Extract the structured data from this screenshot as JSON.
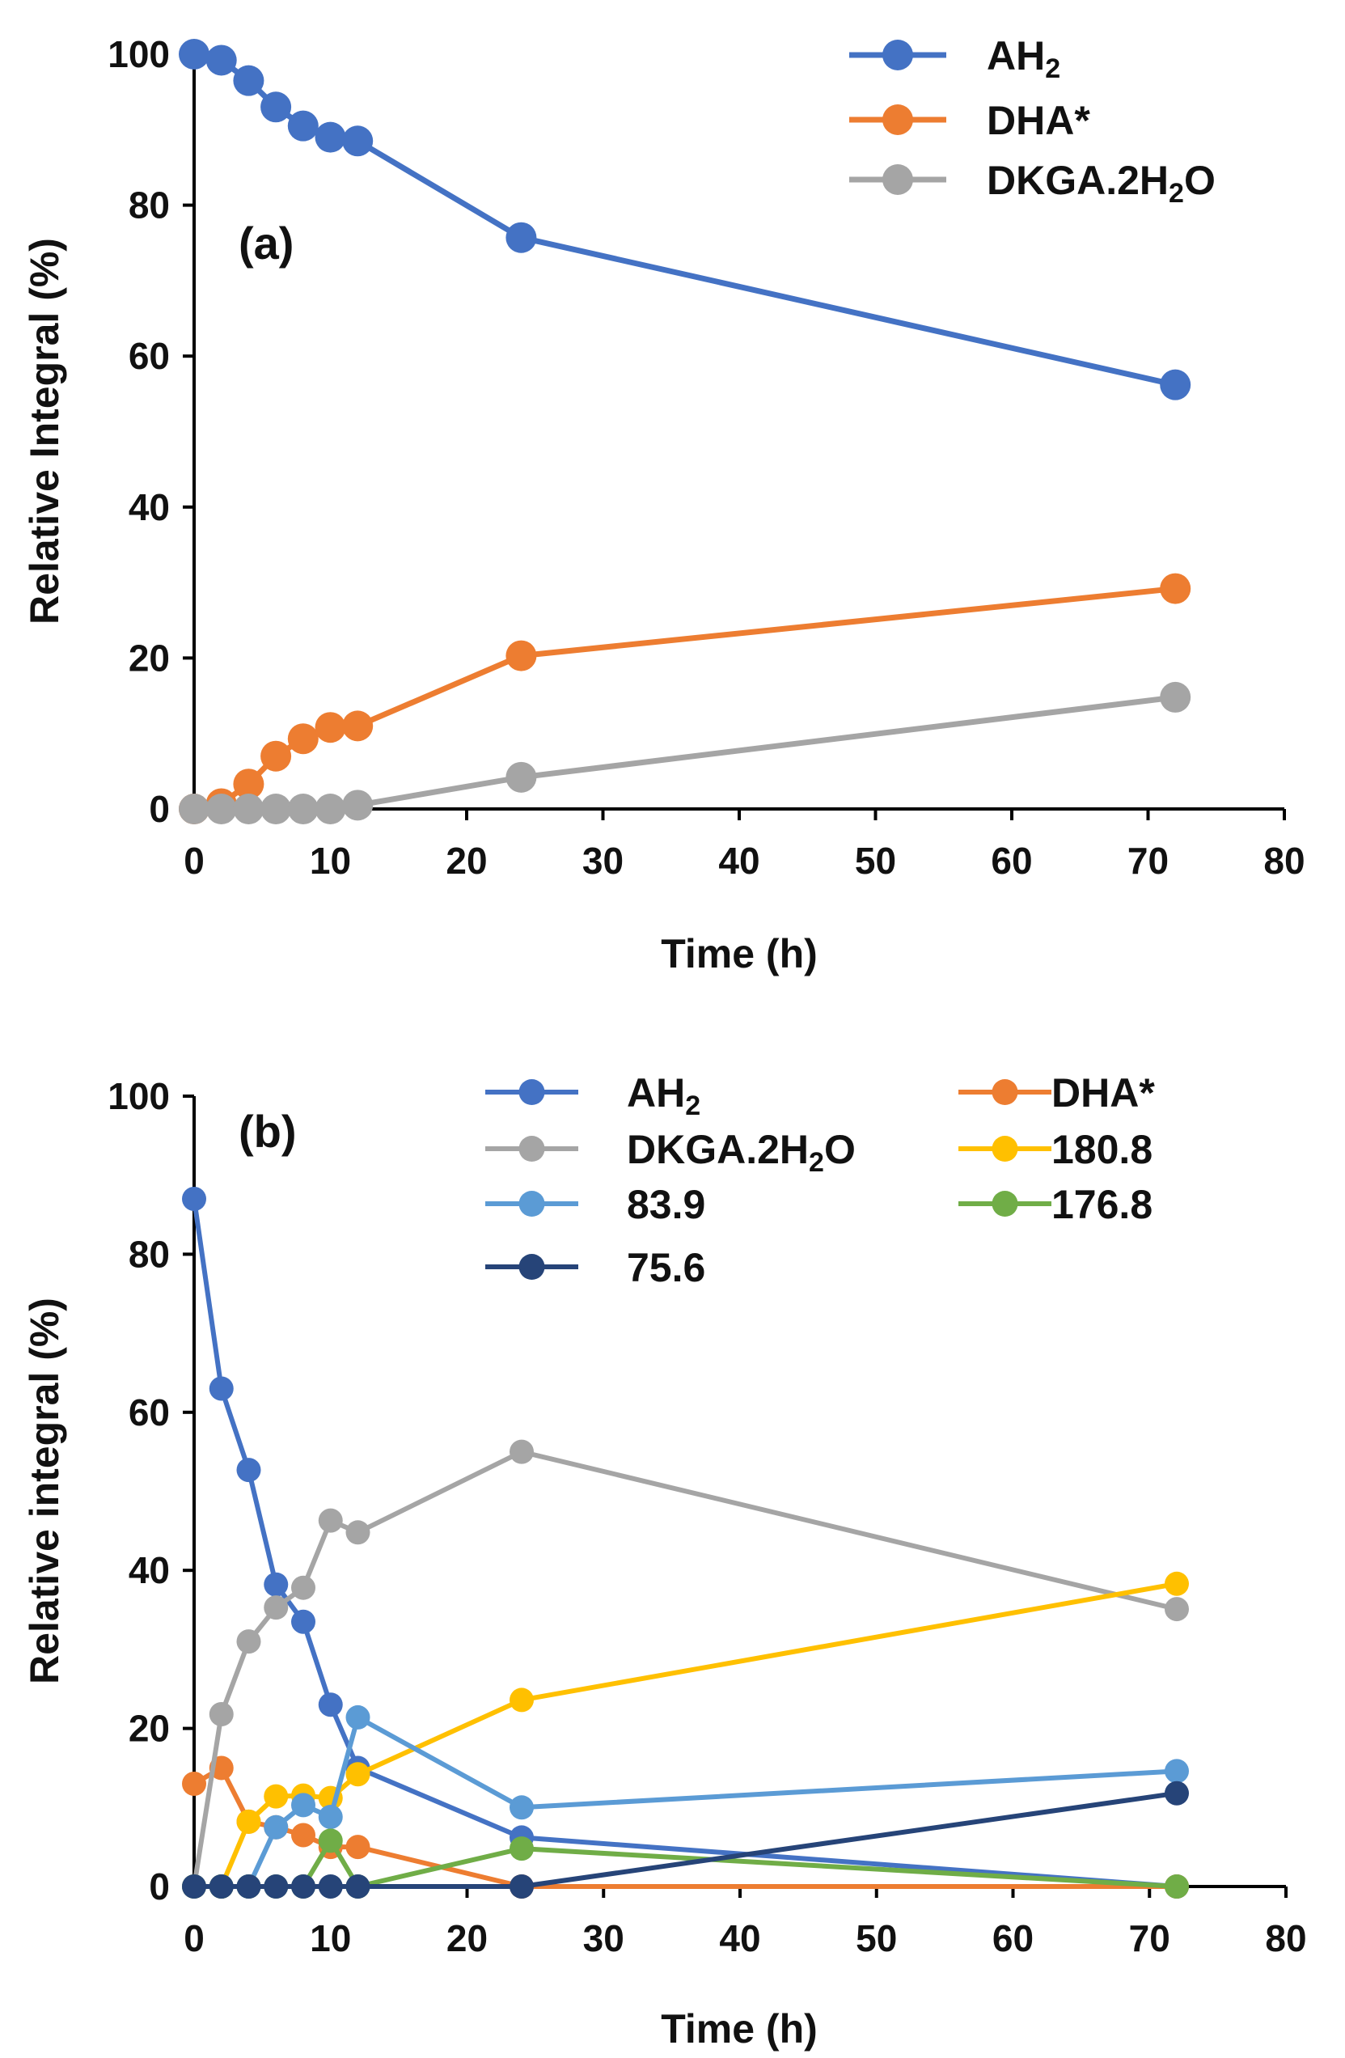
{
  "chart_data": [
    {
      "type": "line",
      "panel_label": "(a)",
      "xlabel": "Time (h)",
      "ylabel": "Relative Integral (%)",
      "xlim": [
        0,
        80
      ],
      "ylim": [
        0,
        100
      ],
      "xticks": [
        "0",
        "10",
        "20",
        "30",
        "40",
        "50",
        "60",
        "70",
        "80"
      ],
      "yticks": [
        "0",
        "20",
        "40",
        "60",
        "80",
        "100"
      ],
      "legend_position": "top-right",
      "x": [
        0,
        2,
        4,
        6,
        8,
        10,
        12,
        24,
        72
      ],
      "series": [
        {
          "name": "AH",
          "sub": "2",
          "suffix": "",
          "color": "#4472C4",
          "values": [
            100,
            99.2,
            96.5,
            93,
            90.5,
            89,
            88.5,
            75.7,
            56.2
          ]
        },
        {
          "name": "DHA*",
          "sub": "",
          "suffix": "",
          "color": "#ED7D31",
          "values": [
            0,
            0.7,
            3.3,
            7,
            9.3,
            10.8,
            11,
            20.3,
            29.2
          ]
        },
        {
          "name": "DKGA.2H",
          "sub": "2",
          "suffix": "O",
          "color": "#A5A5A5",
          "values": [
            0,
            0,
            0,
            0,
            0,
            0,
            0.5,
            4.2,
            14.8
          ]
        }
      ]
    },
    {
      "type": "line",
      "panel_label": "(b)",
      "xlabel": "Time (h)",
      "ylabel": "Relative integral (%)",
      "xlim": [
        0,
        80
      ],
      "ylim": [
        0,
        100
      ],
      "xticks": [
        "0",
        "10",
        "20",
        "30",
        "40",
        "50",
        "60",
        "70",
        "80"
      ],
      "yticks": [
        "0",
        "20",
        "40",
        "60",
        "80",
        "100"
      ],
      "legend_position": "top-right",
      "x": [
        0,
        2,
        4,
        6,
        8,
        10,
        12,
        24,
        72
      ],
      "series": [
        {
          "name": "AH",
          "sub": "2",
          "suffix": "",
          "color": "#4472C4",
          "values": [
            87,
            63,
            52.7,
            38.2,
            33.5,
            23,
            15,
            6.2,
            0
          ]
        },
        {
          "name": "DHA*",
          "sub": "",
          "suffix": "",
          "color": "#ED7D31",
          "values": [
            13,
            15,
            8.2,
            7.5,
            6.5,
            5,
            5,
            0,
            0
          ]
        },
        {
          "name": "DKGA.2H",
          "sub": "2",
          "suffix": "O",
          "color": "#A5A5A5",
          "values": [
            0,
            21.8,
            31,
            35.3,
            37.8,
            46.3,
            44.8,
            55,
            35.1
          ]
        },
        {
          "name": "180.8",
          "sub": "",
          "suffix": "",
          "color": "#FFC000",
          "values": [
            0,
            0,
            8.2,
            11.4,
            11.5,
            11.2,
            14.2,
            23.6,
            38.3
          ]
        },
        {
          "name": "83.9",
          "sub": "",
          "suffix": "",
          "color": "#5B9BD5",
          "values": [
            0,
            0,
            0,
            7.5,
            10.3,
            8.8,
            21.4,
            10,
            14.6
          ]
        },
        {
          "name": "176.8",
          "sub": "",
          "suffix": "",
          "color": "#70AD47",
          "values": [
            0,
            0,
            0,
            0,
            0,
            5.8,
            0,
            4.8,
            0
          ]
        },
        {
          "name": "75.6",
          "sub": "",
          "suffix": "",
          "color": "#264478",
          "values": [
            0,
            0,
            0,
            0,
            0,
            0,
            0,
            0,
            11.8
          ]
        }
      ]
    }
  ]
}
